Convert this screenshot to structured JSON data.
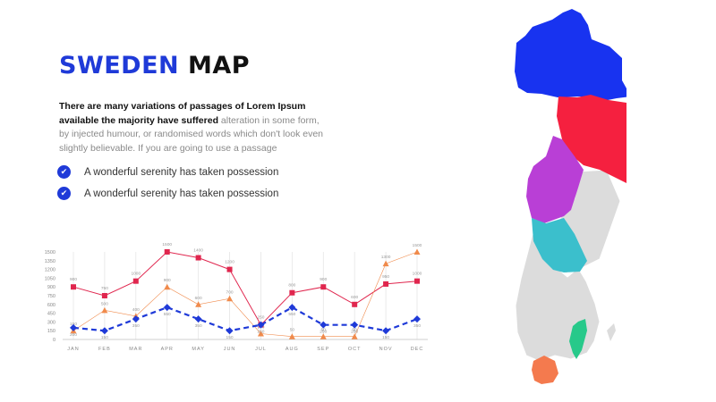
{
  "title": {
    "word1": "SWEDEN",
    "word2": "MAP"
  },
  "description": {
    "bold": "There are many variations of passages of Lorem Ipsum available the majority have suffered",
    "rest": " alteration in some form, by injected humour, or randomised words which don't look even slightly believable. If you are going to use a passage"
  },
  "bullets": [
    {
      "text": "A wonderful serenity has taken possession",
      "icon": "check-icon"
    },
    {
      "text": "A wonderful serenity has taken possession",
      "icon": "check-icon"
    }
  ],
  "colors": {
    "accent": "#1f3ad8",
    "red_series": "#e0264e",
    "orange_series": "#f08a4b",
    "blue_series": "#1f3ad8",
    "region_blue": "#1833f0",
    "region_red": "#f5203f",
    "region_purple": "#b93fd6",
    "region_teal": "#3bbfcc",
    "region_green": "#27c98a",
    "region_orange": "#f47a4e",
    "region_grey": "#dcdcdc"
  },
  "chart_data": {
    "type": "line",
    "categories": [
      "JAN",
      "FEB",
      "MAR",
      "APR",
      "MAY",
      "JUN",
      "JUL",
      "AUG",
      "SEP",
      "OCT",
      "NOV",
      "DEC"
    ],
    "y_ticks": [
      "0",
      "150",
      "300",
      "450",
      "600",
      "750",
      "900",
      "1050",
      "1200",
      "1350",
      "1500"
    ],
    "ylim": [
      0,
      1500
    ],
    "grid": "vertical",
    "series": [
      {
        "values": [
          900,
          750,
          1000,
          1500,
          1400,
          1200,
          250,
          800,
          900,
          600,
          950,
          1000
        ],
        "labels": [
          "900",
          "750",
          "1000",
          "1500",
          "1400",
          "1200",
          "250",
          "800",
          "900",
          "600",
          "950",
          "1000"
        ],
        "color": "#e0264e",
        "marker": "square",
        "style": "solid"
      },
      {
        "values": [
          150,
          500,
          400,
          900,
          600,
          700,
          100,
          50,
          50,
          50,
          1300,
          1500
        ],
        "labels": [
          "150",
          "500",
          "400",
          "900",
          "600",
          "700",
          "100",
          "50",
          "50",
          "50",
          "1300",
          "1500"
        ],
        "color": "#f08a4b",
        "marker": "triangle",
        "style": "solid"
      },
      {
        "values": [
          200,
          150,
          350,
          550,
          350,
          150,
          250,
          550,
          250,
          250,
          150,
          350
        ],
        "labels": [
          "200",
          "150",
          "350",
          "550",
          "350",
          "150",
          "250",
          "550",
          "250",
          "250",
          "150",
          "350"
        ],
        "color": "#1f3ad8",
        "marker": "diamond",
        "style": "dashed"
      }
    ]
  }
}
